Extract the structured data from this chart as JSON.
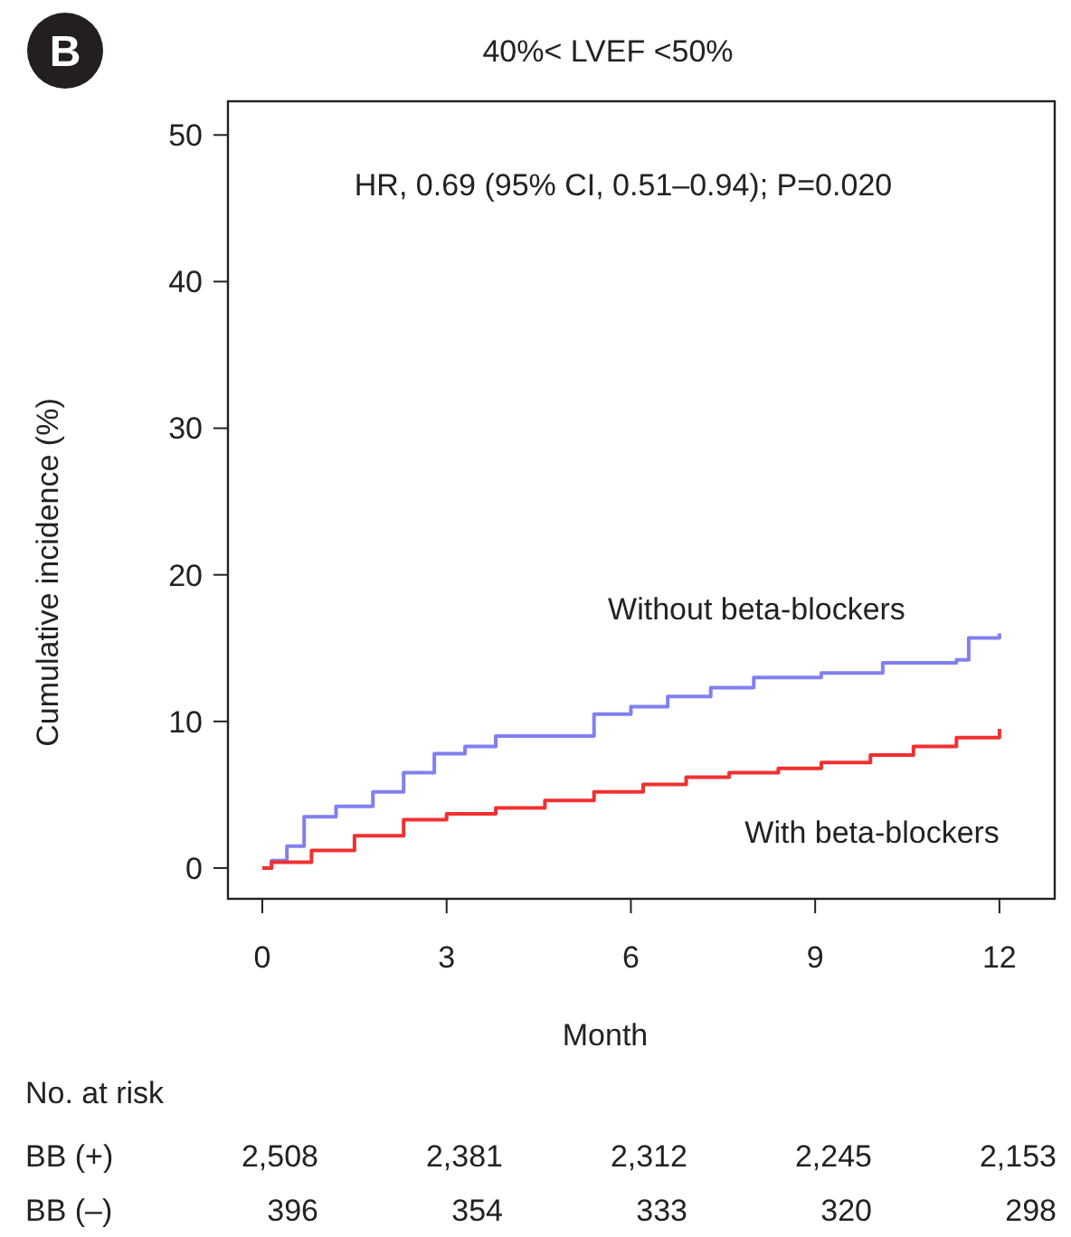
{
  "chart_data": {
    "type": "step",
    "title": "40%< LVEF <50%",
    "xlabel": "Month",
    "ylabel": "Cumulative incidence (%)",
    "xlim": [
      -0.56,
      12.9
    ],
    "ylim": [
      -2.1,
      52.3
    ],
    "xticks": [
      0,
      3,
      6,
      9,
      12
    ],
    "yticks": [
      0,
      10,
      20,
      30,
      40,
      50
    ],
    "grid": false,
    "legend": false,
    "marker": "none",
    "line_style": "solid",
    "series": [
      {
        "name": "Without beta-blockers",
        "color": "#8080f0",
        "x": [
          0,
          0.15,
          0.4,
          0.68,
          1.2,
          1.8,
          2.3,
          2.8,
          3.3,
          3.8,
          4.9,
          5.4,
          6.0,
          6.6,
          7.3,
          8.0,
          9.1,
          10.1,
          11.3,
          11.5,
          12
        ],
        "values": [
          0,
          0.5,
          1.5,
          3.5,
          4.2,
          5.2,
          6.5,
          7.8,
          8.3,
          9.0,
          9.0,
          10.5,
          11.0,
          11.7,
          12.3,
          13.0,
          13.3,
          14.0,
          14.2,
          15.7,
          16.0
        ]
      },
      {
        "name": "With beta-blockers",
        "color": "#f03030",
        "x": [
          0,
          0.15,
          0.8,
          1.5,
          2.3,
          3.0,
          3.8,
          4.6,
          5.4,
          6.2,
          6.9,
          7.6,
          8.4,
          9.1,
          9.9,
          10.6,
          11.3,
          12
        ],
        "values": [
          0,
          0.4,
          1.2,
          2.2,
          3.3,
          3.7,
          4.1,
          4.6,
          5.2,
          5.7,
          6.2,
          6.5,
          6.8,
          7.2,
          7.7,
          8.3,
          8.9,
          9.5
        ]
      }
    ],
    "annotations": [
      "B",
      "HR, 0.69 (95% CI, 0.51–0.94); P=0.020",
      "No. at risk",
      "BB (+)",
      "2,508",
      "2,381",
      "2,312",
      "2,245",
      "2,153",
      "BB (–)",
      "396",
      "354",
      "333",
      "320",
      "298"
    ]
  }
}
